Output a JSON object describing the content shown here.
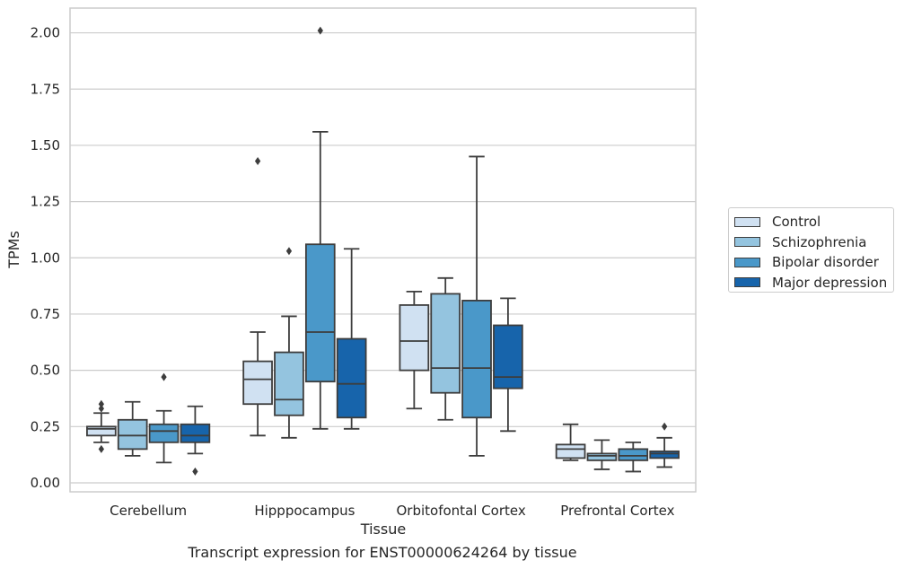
{
  "caption": "Transcript expression for ENST00000624264 by tissue",
  "chart_data": {
    "type": "box",
    "xlabel": "Tissue",
    "ylabel": "TPMs",
    "ylim": [
      -0.04,
      2.11
    ],
    "yticks": [
      "0.00",
      "0.25",
      "0.50",
      "0.75",
      "1.00",
      "1.25",
      "1.50",
      "1.75",
      "2.00"
    ],
    "ytick_values": [
      0,
      0.25,
      0.5,
      0.75,
      1.0,
      1.25,
      1.5,
      1.75,
      2.0
    ],
    "grid": true,
    "legend_position": "right",
    "categories": [
      "Cerebellum",
      "Hipppocampus",
      "Orbitofontal Cortex",
      "Prefrontal Cortex"
    ],
    "series": [
      {
        "name": "Control",
        "color": "#d0e1f2",
        "boxes": [
          {
            "whislo": 0.18,
            "q1": 0.21,
            "med": 0.24,
            "q3": 0.25,
            "whishi": 0.31,
            "fliers": [
              0.15,
              0.33,
              0.35
            ]
          },
          {
            "whislo": 0.21,
            "q1": 0.35,
            "med": 0.46,
            "q3": 0.54,
            "whishi": 0.67,
            "fliers": [
              1.43
            ]
          },
          {
            "whislo": 0.33,
            "q1": 0.5,
            "med": 0.63,
            "q3": 0.79,
            "whishi": 0.85,
            "fliers": []
          },
          {
            "whislo": 0.1,
            "q1": 0.11,
            "med": 0.15,
            "q3": 0.17,
            "whishi": 0.26,
            "fliers": []
          }
        ]
      },
      {
        "name": "Schizophrenia",
        "color": "#94c4df",
        "boxes": [
          {
            "whislo": 0.12,
            "q1": 0.15,
            "med": 0.21,
            "q3": 0.28,
            "whishi": 0.36,
            "fliers": []
          },
          {
            "whislo": 0.2,
            "q1": 0.3,
            "med": 0.37,
            "q3": 0.58,
            "whishi": 0.74,
            "fliers": [
              1.03
            ]
          },
          {
            "whislo": 0.28,
            "q1": 0.4,
            "med": 0.51,
            "q3": 0.84,
            "whishi": 0.91,
            "fliers": []
          },
          {
            "whislo": 0.06,
            "q1": 0.1,
            "med": 0.12,
            "q3": 0.13,
            "whishi": 0.19,
            "fliers": []
          }
        ]
      },
      {
        "name": "Bipolar disorder",
        "color": "#4a98c9",
        "boxes": [
          {
            "whislo": 0.09,
            "q1": 0.18,
            "med": 0.23,
            "q3": 0.26,
            "whishi": 0.32,
            "fliers": [
              0.47
            ]
          },
          {
            "whislo": 0.24,
            "q1": 0.45,
            "med": 0.67,
            "q3": 1.06,
            "whishi": 1.56,
            "fliers": [
              2.01
            ]
          },
          {
            "whislo": 0.12,
            "q1": 0.29,
            "med": 0.51,
            "q3": 0.81,
            "whishi": 1.45,
            "fliers": []
          },
          {
            "whislo": 0.05,
            "q1": 0.1,
            "med": 0.12,
            "q3": 0.15,
            "whishi": 0.18,
            "fliers": []
          }
        ]
      },
      {
        "name": "Major depression",
        "color": "#1764ab",
        "boxes": [
          {
            "whislo": 0.13,
            "q1": 0.18,
            "med": 0.21,
            "q3": 0.26,
            "whishi": 0.34,
            "fliers": [
              0.05
            ]
          },
          {
            "whislo": 0.24,
            "q1": 0.29,
            "med": 0.44,
            "q3": 0.64,
            "whishi": 1.04,
            "fliers": []
          },
          {
            "whislo": 0.23,
            "q1": 0.42,
            "med": 0.47,
            "q3": 0.7,
            "whishi": 0.82,
            "fliers": []
          },
          {
            "whislo": 0.07,
            "q1": 0.11,
            "med": 0.13,
            "q3": 0.14,
            "whishi": 0.2,
            "fliers": [
              0.25
            ]
          }
        ]
      }
    ]
  }
}
